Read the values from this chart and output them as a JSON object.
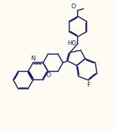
{
  "bg_color": "#FDFBF2",
  "lc": "#1a1a6e",
  "lw": 1.1,
  "fs": 6.5,
  "xlim": [
    0,
    10
  ],
  "ylim": [
    0,
    11.5
  ]
}
